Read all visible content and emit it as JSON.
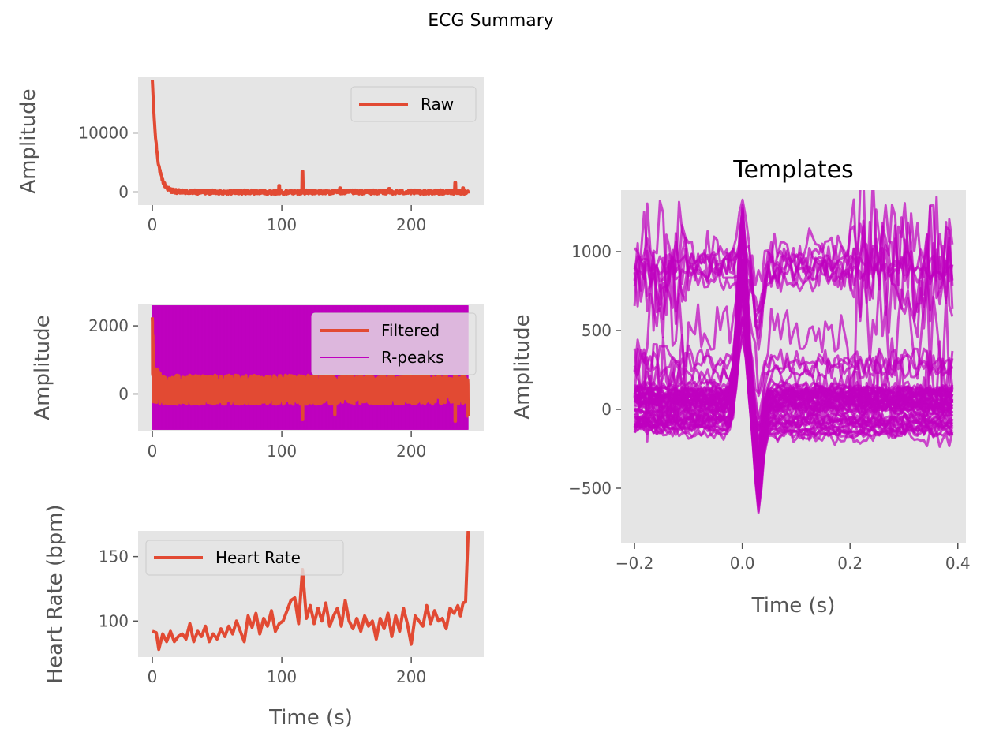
{
  "figure": {
    "suptitle": "ECG Summary",
    "colors": {
      "ecg": "#e24a33",
      "rpeaks": "#bf00bf",
      "template": "#bf00bf",
      "axes_bg": "#e5e5e5",
      "tick_text": "#555555",
      "label_text": "#555555"
    }
  },
  "chart_data": [
    {
      "id": "raw",
      "type": "line",
      "title": "",
      "xlabel": "",
      "ylabel": "Amplitude",
      "xlim": [
        -11,
        256
      ],
      "ylim": [
        -2200,
        19400
      ],
      "xticks": [
        0,
        100,
        200
      ],
      "xtick_labels": [
        "0",
        "100",
        "200"
      ],
      "yticks": [
        0,
        10000
      ],
      "ytick_labels": [
        "0",
        "10000"
      ],
      "grid": false,
      "legend": {
        "position": "upper right",
        "entries": [
          "Raw"
        ]
      },
      "series": [
        {
          "name": "Raw",
          "baseline": 0,
          "noise": 350,
          "decay": {
            "start": 18900,
            "time_constant": 3.5,
            "end": 12
          },
          "x_end": 244,
          "spikes": [
            [
              98,
              1100
            ],
            [
              116,
              3500
            ],
            [
              145,
              700
            ],
            [
              183,
              600
            ],
            [
              234,
              1600
            ],
            [
              240,
              700
            ]
          ]
        }
      ]
    },
    {
      "id": "filtered",
      "type": "line",
      "title": "",
      "xlabel": "",
      "ylabel": "Amplitude",
      "xlim": [
        -11,
        256
      ],
      "ylim": [
        -1100,
        2650
      ],
      "xticks": [
        0,
        100,
        200
      ],
      "xtick_labels": [
        "0",
        "100",
        "200"
      ],
      "yticks": [
        0,
        2000
      ],
      "ytick_labels": [
        "0",
        "2000"
      ],
      "grid": false,
      "legend": {
        "position": "upper right",
        "entries": [
          "Filtered",
          "R-peaks"
        ]
      },
      "series": [
        {
          "name": "Filtered",
          "band": [
            -300,
            550
          ],
          "x_end": 244,
          "initial_spike": 2250,
          "dips": [
            [
              116,
              -750
            ],
            [
              141,
              -600
            ],
            [
              234,
              -800
            ],
            [
              244,
              -650
            ]
          ]
        },
        {
          "name": "R-peaks",
          "kind": "vertical-lines",
          "x_range": [
            0,
            244
          ],
          "y_range": [
            -1050,
            2600
          ]
        }
      ]
    },
    {
      "id": "heart-rate",
      "type": "line",
      "title": "",
      "xlabel": "Time (s)",
      "ylabel": "Heart Rate (bpm)",
      "xlim": [
        -11,
        256
      ],
      "ylim": [
        72,
        170
      ],
      "xticks": [
        0,
        100,
        200
      ],
      "xtick_labels": [
        "0",
        "100",
        "200"
      ],
      "yticks": [
        100,
        150
      ],
      "ytick_labels": [
        "100",
        "150"
      ],
      "grid": false,
      "legend": {
        "position": "upper left",
        "entries": [
          "Heart Rate"
        ]
      },
      "series": [
        {
          "name": "Heart Rate",
          "x": [
            0,
            3,
            5,
            8,
            11,
            14,
            17,
            20,
            23,
            26,
            29,
            32,
            35,
            38,
            41,
            44,
            47,
            50,
            53,
            56,
            59,
            62,
            65,
            68,
            71,
            74,
            77,
            80,
            83,
            86,
            89,
            92,
            95,
            98,
            101,
            104,
            107,
            110,
            113,
            116,
            119,
            122,
            125,
            128,
            131,
            134,
            137,
            140,
            143,
            146,
            149,
            152,
            155,
            158,
            161,
            164,
            167,
            170,
            173,
            176,
            179,
            182,
            185,
            188,
            191,
            194,
            197,
            200,
            203,
            206,
            209,
            212,
            215,
            218,
            221,
            224,
            227,
            230,
            233,
            236,
            238,
            240,
            242,
            244
          ],
          "y": [
            92,
            91,
            78,
            90,
            84,
            92,
            84,
            88,
            90,
            86,
            98,
            84,
            92,
            88,
            96,
            84,
            90,
            86,
            94,
            88,
            96,
            90,
            100,
            92,
            84,
            104,
            95,
            106,
            90,
            102,
            96,
            108,
            92,
            98,
            100,
            108,
            116,
            118,
            98,
            140,
            102,
            112,
            98,
            110,
            100,
            114,
            96,
            104,
            110,
            96,
            116,
            100,
            94,
            102,
            92,
            104,
            96,
            100,
            86,
            102,
            94,
            106,
            88,
            104,
            92,
            110,
            98,
            82,
            104,
            100,
            96,
            112,
            98,
            108,
            100,
            102,
            94,
            110,
            106,
            112,
            104,
            114,
            115,
            170
          ]
        }
      ]
    },
    {
      "id": "templates",
      "type": "line",
      "title": "Templates",
      "xlabel": "Time (s)",
      "ylabel": "Amplitude",
      "xlim": [
        -0.225,
        0.415
      ],
      "ylim": [
        -850,
        1390
      ],
      "xticks": [
        -0.2,
        0.0,
        0.2,
        0.4
      ],
      "xtick_labels": [
        "−0.2",
        "0.0",
        "0.2",
        "0.4"
      ],
      "yticks": [
        -500,
        0,
        500,
        1000
      ],
      "ytick_labels": [
        "−500",
        "0",
        "500",
        "1000"
      ],
      "grid": false,
      "legend": null,
      "series": [
        {
          "name": "",
          "kind": "template-family",
          "count": 60,
          "x_range": [
            -0.2,
            0.39
          ],
          "peak_x": 0.0,
          "peak_range": [
            450,
            1350
          ],
          "trough_range": [
            -760,
            -180
          ],
          "offset_range": [
            -120,
            1000
          ]
        }
      ]
    }
  ]
}
